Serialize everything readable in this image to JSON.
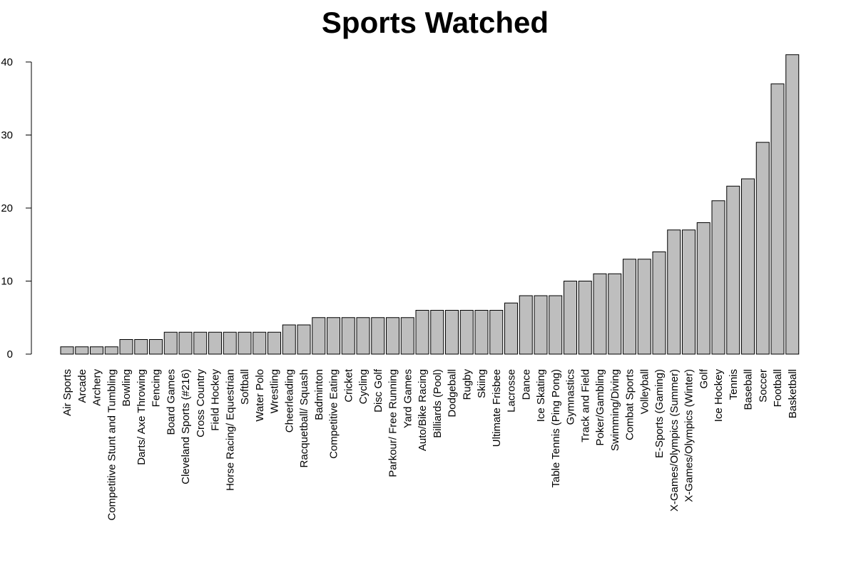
{
  "chart_data": {
    "type": "bar",
    "title": "Sports Watched",
    "xlabel": "",
    "ylabel": "",
    "ylim": [
      0,
      41
    ],
    "yticks": [
      0,
      10,
      20,
      30,
      40
    ],
    "grid": false,
    "bar_color": "#bebebe",
    "categories": [
      "Air Sports",
      "Arcade",
      "Archery",
      "Competitive Stunt and Tumbling",
      "Bowling",
      "Darts/ Axe Throwing",
      "Fencing",
      "Board Games",
      "Cleveland Sports (#216)",
      "Cross Country",
      "Field Hockey",
      "Horse Racing/ Equestrian",
      "Softball",
      "Water Polo",
      "Wrestling",
      "Cheerleading",
      "Racquetball/ Squash",
      "Badminton",
      "Competitive Eating",
      "Cricket",
      "Cycling",
      "Disc Golf",
      "Parkour/ Free Running",
      "Yard Games",
      "Auto/Bike Racing",
      "Billiards (Pool)",
      "Dodgeball",
      "Rugby",
      "Skiing",
      "Ultimate Frisbee",
      "Lacrosse",
      "Dance",
      "Ice Skating",
      "Table Tennis (Ping Pong)",
      "Gymnastics",
      "Track and Field",
      "Poker/Gambling",
      "Swimming/Diving",
      "Combat Sports",
      "Volleyball",
      "E-Sports (Gaming)",
      "X-Games/Olympics (Summer)",
      "X-Games/Olympics (Winter)",
      "Golf",
      "Ice Hockey",
      "Tennis",
      "Baseball",
      "Soccer",
      "Football",
      "Basketball"
    ],
    "values": [
      1,
      1,
      1,
      1,
      2,
      2,
      2,
      3,
      3,
      3,
      3,
      3,
      3,
      3,
      3,
      4,
      4,
      5,
      5,
      5,
      5,
      5,
      5,
      5,
      6,
      6,
      6,
      6,
      6,
      6,
      7,
      8,
      8,
      8,
      10,
      10,
      11,
      11,
      13,
      13,
      14,
      17,
      17,
      18,
      21,
      23,
      24,
      29,
      37,
      41
    ]
  }
}
